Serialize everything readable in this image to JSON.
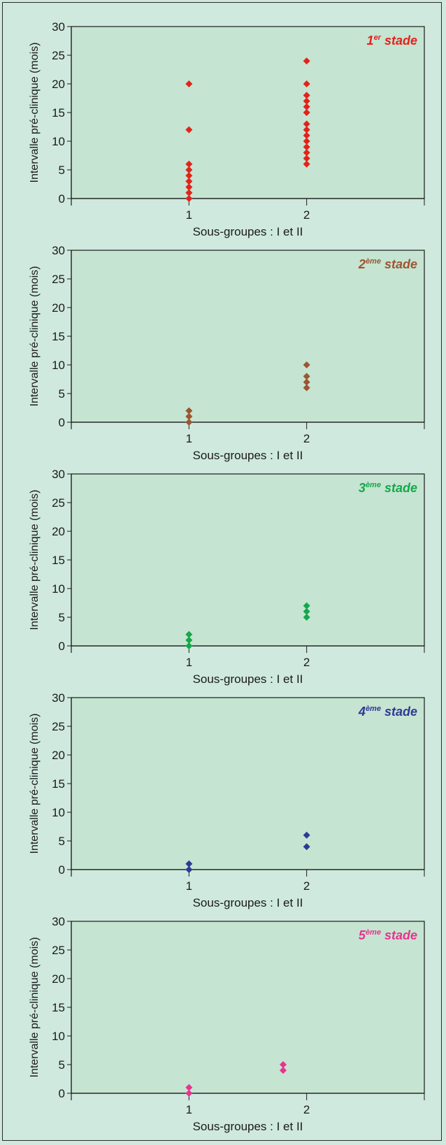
{
  "chart_data": [
    {
      "type": "scatter",
      "title": "1er stade",
      "title_main": "1",
      "title_sup": "er",
      "title_rest": " stade",
      "color": "#e2231a",
      "xlabel": "Sous-groupes : I et II",
      "ylabel": "Intervalle pré-clinique (mois)",
      "xlim": [
        0,
        3
      ],
      "ylim": [
        0,
        30
      ],
      "xticks": [
        1,
        2
      ],
      "yticks": [
        0,
        5,
        10,
        15,
        20,
        25,
        30
      ],
      "grid": false,
      "points": [
        {
          "x": 1,
          "y": 0
        },
        {
          "x": 1,
          "y": 1
        },
        {
          "x": 1,
          "y": 2
        },
        {
          "x": 1,
          "y": 3
        },
        {
          "x": 1,
          "y": 4
        },
        {
          "x": 1,
          "y": 5
        },
        {
          "x": 1,
          "y": 6
        },
        {
          "x": 1,
          "y": 12
        },
        {
          "x": 1,
          "y": 20
        },
        {
          "x": 2,
          "y": 6
        },
        {
          "x": 2,
          "y": 7
        },
        {
          "x": 2,
          "y": 8
        },
        {
          "x": 2,
          "y": 9
        },
        {
          "x": 2,
          "y": 10
        },
        {
          "x": 2,
          "y": 11
        },
        {
          "x": 2,
          "y": 12
        },
        {
          "x": 2,
          "y": 13
        },
        {
          "x": 2,
          "y": 15
        },
        {
          "x": 2,
          "y": 16
        },
        {
          "x": 2,
          "y": 17
        },
        {
          "x": 2,
          "y": 18
        },
        {
          "x": 2,
          "y": 20
        },
        {
          "x": 2,
          "y": 24
        }
      ]
    },
    {
      "type": "scatter",
      "title": "2ème stade",
      "title_main": "2",
      "title_sup": "ème",
      "title_rest": " stade",
      "color": "#9b5633",
      "xlabel": "Sous-groupes : I et II",
      "ylabel": "Intervalle pré-clinique (mois)",
      "xlim": [
        0,
        3
      ],
      "ylim": [
        0,
        30
      ],
      "xticks": [
        1,
        2
      ],
      "yticks": [
        0,
        5,
        10,
        15,
        20,
        25,
        30
      ],
      "grid": false,
      "points": [
        {
          "x": 1,
          "y": 0
        },
        {
          "x": 1,
          "y": 1
        },
        {
          "x": 1,
          "y": 2
        },
        {
          "x": 2,
          "y": 6
        },
        {
          "x": 2,
          "y": 7
        },
        {
          "x": 2,
          "y": 8
        },
        {
          "x": 2,
          "y": 10
        }
      ]
    },
    {
      "type": "scatter",
      "title": "3ème stade",
      "title_main": "3",
      "title_sup": "ème",
      "title_rest": " stade",
      "color": "#14a84a",
      "xlabel": "Sous-groupes : I et II",
      "ylabel": "Intervalle pré-clinique (mois)",
      "xlim": [
        0,
        3
      ],
      "ylim": [
        0,
        30
      ],
      "xticks": [
        1,
        2
      ],
      "yticks": [
        0,
        5,
        10,
        15,
        20,
        25,
        30
      ],
      "grid": false,
      "points": [
        {
          "x": 1,
          "y": 0
        },
        {
          "x": 1,
          "y": 1
        },
        {
          "x": 1,
          "y": 2
        },
        {
          "x": 2,
          "y": 5
        },
        {
          "x": 2,
          "y": 6
        },
        {
          "x": 2,
          "y": 7
        }
      ]
    },
    {
      "type": "scatter",
      "title": "4ème stade",
      "title_main": "4",
      "title_sup": "ème",
      "title_rest": " stade",
      "color": "#2d3a93",
      "xlabel": "Sous-groupes : I et II",
      "ylabel": "Intervalle pré-clinique (mois)",
      "xlim": [
        0,
        3
      ],
      "ylim": [
        0,
        30
      ],
      "xticks": [
        1,
        2
      ],
      "yticks": [
        0,
        5,
        10,
        15,
        20,
        25,
        30
      ],
      "grid": false,
      "points": [
        {
          "x": 1,
          "y": 0
        },
        {
          "x": 1,
          "y": 1
        },
        {
          "x": 2,
          "y": 4
        },
        {
          "x": 2,
          "y": 6
        }
      ]
    },
    {
      "type": "scatter",
      "title": "5ème stade",
      "title_main": "5",
      "title_sup": "ème",
      "title_rest": " stade",
      "color": "#e8338f",
      "xlabel": "Sous-groupes : I et II",
      "ylabel": "Intervalle pré-clinique (mois)",
      "xlim": [
        0,
        3
      ],
      "ylim": [
        0,
        30
      ],
      "xticks": [
        1,
        2
      ],
      "yticks": [
        0,
        5,
        10,
        15,
        20,
        25,
        30
      ],
      "grid": false,
      "points": [
        {
          "x": 1,
          "y": 0
        },
        {
          "x": 1,
          "y": 1
        },
        {
          "x": 1.8,
          "y": 4
        },
        {
          "x": 1.8,
          "y": 5
        }
      ]
    }
  ]
}
